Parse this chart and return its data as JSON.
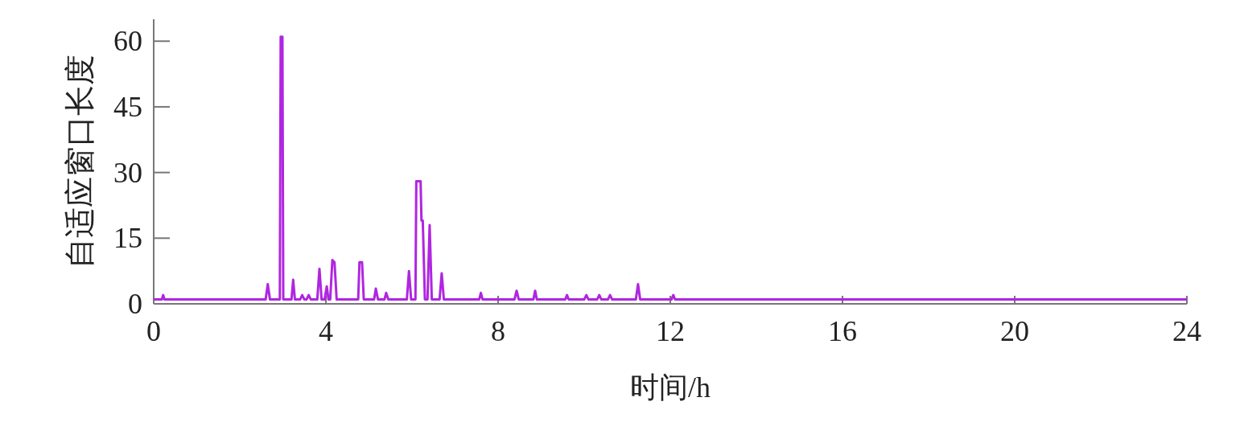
{
  "chart_data": {
    "type": "line",
    "xlabel": "时间/h",
    "ylabel": "自适应窗口长度",
    "xlim": [
      0,
      24
    ],
    "ylim": [
      0,
      65
    ],
    "xticks": [
      0,
      4,
      8,
      12,
      16,
      20,
      24
    ],
    "yticks": [
      0,
      15,
      30,
      45,
      60
    ],
    "grid": false,
    "marker": "none",
    "line_style": "solid",
    "series": [
      {
        "color": "#b026e0",
        "x": [
          0,
          0.19,
          0.22,
          0.25,
          2.6,
          2.65,
          2.7,
          2.93,
          2.95,
          2.99,
          3.01,
          3.2,
          3.24,
          3.28,
          3.4,
          3.45,
          3.5,
          3.55,
          3.6,
          3.65,
          3.8,
          3.85,
          3.9,
          3.97,
          4.02,
          4.06,
          4.1,
          4.15,
          4.2,
          4.25,
          4.75,
          4.78,
          4.84,
          4.88,
          5.12,
          5.16,
          5.21,
          5.36,
          5.4,
          5.45,
          5.88,
          5.93,
          5.98,
          6.08,
          6.1,
          6.2,
          6.22,
          6.25,
          6.3,
          6.36,
          6.41,
          6.46,
          6.64,
          6.69,
          6.74,
          7.56,
          7.6,
          7.64,
          8.38,
          8.43,
          8.48,
          8.82,
          8.86,
          8.9,
          9.56,
          9.6,
          9.64,
          10.0,
          10.05,
          10.1,
          10.3,
          10.35,
          10.4,
          10.55,
          10.6,
          10.65,
          11.2,
          11.25,
          11.3,
          12.03,
          12.07,
          12.11,
          24
        ],
        "values": [
          1,
          1,
          2,
          1,
          1,
          4.5,
          1,
          1,
          61,
          61,
          1,
          1,
          5.5,
          1,
          1,
          2,
          1,
          1,
          2,
          1,
          1,
          8,
          1,
          1,
          4,
          1,
          1,
          10,
          9.5,
          1,
          1,
          9.5,
          9.5,
          1,
          1,
          3.5,
          1,
          1,
          2.5,
          1,
          1,
          7.5,
          1,
          1,
          28,
          28,
          19,
          19,
          1,
          1,
          18,
          1,
          1,
          7,
          1,
          1,
          2.5,
          1,
          1,
          3,
          1,
          1,
          3,
          1,
          1,
          2,
          1,
          1,
          2,
          1,
          1,
          2,
          1,
          1,
          2,
          1,
          1,
          4.5,
          1,
          1,
          2,
          1,
          1
        ]
      }
    ]
  }
}
